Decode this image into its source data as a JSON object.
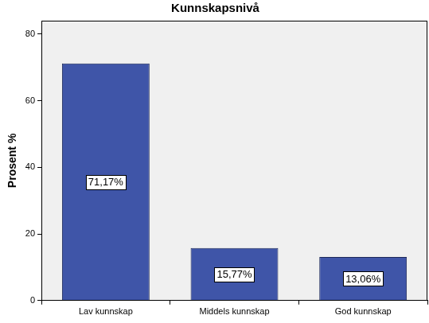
{
  "chart_data": {
    "type": "bar",
    "title": "Kunnskapsnivå",
    "ylabel": "Prosent %",
    "categories": [
      "Lav kunnskap",
      "Middels kunnskap",
      "God kunnskap"
    ],
    "values": [
      71.17,
      15.77,
      13.06
    ],
    "value_labels": [
      "71,17%",
      "15,77%",
      "13,06%"
    ],
    "color": "#3f55a8",
    "ylim": [
      0,
      84
    ],
    "yticks": [
      0,
      20,
      40,
      60,
      80
    ],
    "grid": false,
    "data_labels": true
  }
}
